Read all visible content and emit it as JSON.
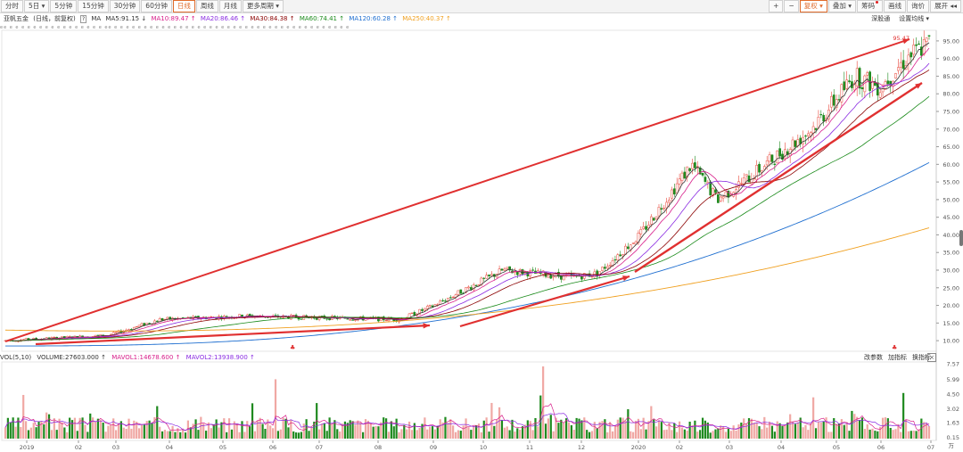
{
  "toolbar": {
    "tabs": [
      {
        "label": "分时",
        "active": false
      },
      {
        "label": "5日 ▾",
        "active": false
      },
      {
        "label": "5分钟",
        "active": false
      },
      {
        "label": "15分钟",
        "active": false
      },
      {
        "label": "30分钟",
        "active": false
      },
      {
        "label": "60分钟",
        "active": false
      },
      {
        "label": "日线",
        "active": true
      },
      {
        "label": "周线",
        "active": false
      },
      {
        "label": "月线",
        "active": false
      },
      {
        "label": "更多周期 ▾",
        "active": false
      }
    ],
    "right": {
      "plus": "+",
      "minus": "−",
      "restore": "复权 ▾",
      "overlay": "叠加 ▾",
      "chips": "筹码",
      "draw": "画线",
      "crosshair": "询价",
      "expand": "展开 ◂◂"
    }
  },
  "info": {
    "stock_name": "亚帆五金",
    "mode": "(日线，前复权)",
    "box": "?",
    "ma_label": "MA",
    "ma5": {
      "text": "MA5:91.15 ↓",
      "color": "#333333"
    },
    "ma10": {
      "text": "MA10:89.47 ↑",
      "color": "#d81e8a"
    },
    "ma20": {
      "text": "MA20:86.46 ↑",
      "color": "#8a2be2"
    },
    "ma30": {
      "text": "MA30:84.38 ↑",
      "color": "#8b0000"
    },
    "ma60": {
      "text": "MA60:74.41 ↑",
      "color": "#1a8a1a"
    },
    "ma120": {
      "text": "MA120:60.28 ↑",
      "color": "#1f6fd0"
    },
    "ma250": {
      "text": "MA250:40.37 ↑",
      "color": "#f0a020"
    },
    "right_links": {
      "deep": "深股通",
      "settings": "设置均线 ▾"
    }
  },
  "marks_row": "ee     e    e  e  e  e       e  e     e     e       e   e   e  e   e   e   e  ee  e   e   e  e  e  e   e    e  e   e   e  e   e  e  e  e  e    e  e  e   e    e  e   e   e    e   e   e  e  e  e  e  e   e      e    e  e   e  e  e",
  "price_axis": {
    "labels": [
      "95.00",
      "90.00",
      "85.00",
      "80.00",
      "75.00",
      "70.00",
      "65.00",
      "60.00",
      "55.00",
      "50.00",
      "45.00",
      "40.00",
      "35.00",
      "30.00",
      "25.00",
      "20.00",
      "15.00",
      "10.00"
    ],
    "high_label": "95.47"
  },
  "volume_panel": {
    "title": "VOL(5,10)",
    "volume": "VOLUME:27603.000 ↑",
    "mavol1": "MAVOL1:14678.600 ↑",
    "mavol2": "MAVOL2:13938.900 ↑",
    "actions": {
      "edit": "改参数",
      "add": "加指标",
      "switch": "换指标"
    },
    "close": "×",
    "axis_labels": [
      "7.57",
      "5.99",
      "4.50",
      "3.02",
      "1.63",
      "0.15"
    ],
    "unit": "万"
  },
  "dates": [
    "2019",
    "02",
    "03",
    "04",
    "05",
    "06",
    "07",
    "08",
    "09",
    "10",
    "11",
    "12",
    "2020",
    "02",
    "03",
    "04",
    "05",
    "06",
    "07"
  ],
  "colors": {
    "up": "#e8483c",
    "down": "#1f8a1f",
    "arrow": "#e03030",
    "ma5": "#333333",
    "ma10": "#d81e8a",
    "ma20": "#8a2be2",
    "ma30": "#8b0000",
    "ma60": "#1a8a1a",
    "ma120": "#1f6fd0",
    "ma250": "#f0a020",
    "mavol1": "#d81e8a",
    "mavol2": "#8a2be2"
  }
}
